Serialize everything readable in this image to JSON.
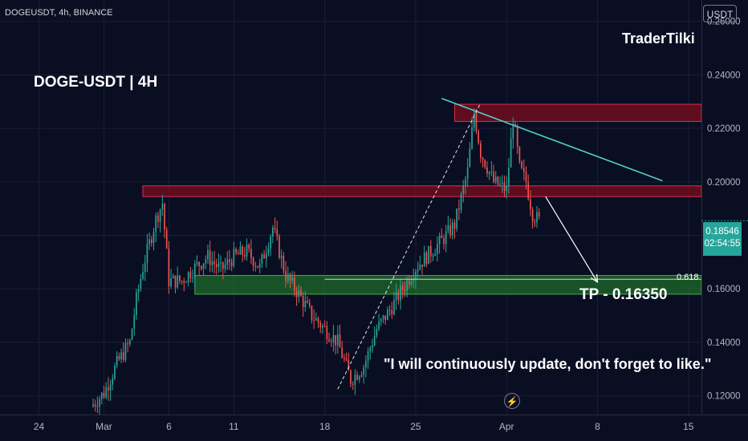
{
  "header": {
    "symbol_line": "DOGEUSDT, 4h, BINANCE",
    "currency": "USDT"
  },
  "annotations": {
    "author": "TraderTilki",
    "pair_label": "DOGE-USDT | 4H",
    "update_note": "\"I will continuously update, don't forget to like.\"",
    "target_label": "TP - 0.16350",
    "fib_level": "0.618"
  },
  "price_tag": {
    "price": "0.18546",
    "countdown": "02:54:55"
  },
  "colors": {
    "background": "#0a0e23",
    "up_candle": "#26a69a",
    "down_candle": "#ef5350",
    "resistance_zone": "#7a0d1e",
    "support_zone": "#1e6b2a",
    "trend_line": "#4dd0c8",
    "grid": "#1a1f35",
    "axis_text": "#b2b5be"
  },
  "chart_data": {
    "type": "candlestick",
    "title": "DOGE-USDT | 4H",
    "xlabel": "",
    "ylabel": "",
    "ylim": [
      0.113,
      0.268
    ],
    "y_ticks": [
      "0.26000",
      "0.24000",
      "0.22000",
      "0.20000",
      "0.18000",
      "0.16000",
      "0.14000",
      "0.12000"
    ],
    "y_tick_values": [
      0.26,
      0.24,
      0.22,
      0.2,
      0.18,
      0.16,
      0.14,
      0.12
    ],
    "x_start": "2023-02-21",
    "x_end": "2023-04-16",
    "x_ticks": [
      {
        "label": "24",
        "date": "2023-02-24"
      },
      {
        "label": "Mar",
        "date": "2023-03-01"
      },
      {
        "label": "6",
        "date": "2023-03-06"
      },
      {
        "label": "11",
        "date": "2023-03-11"
      },
      {
        "label": "18",
        "date": "2023-03-18"
      },
      {
        "label": "25",
        "date": "2023-03-25"
      },
      {
        "label": "Apr",
        "date": "2023-04-01"
      },
      {
        "label": "8",
        "date": "2023-04-08"
      },
      {
        "label": "15",
        "date": "2023-04-15"
      }
    ],
    "price_path": [
      {
        "date": "2023-02-28",
        "price": 0.116
      },
      {
        "date": "2023-03-01",
        "price": 0.121
      },
      {
        "date": "2023-03-02",
        "price": 0.132
      },
      {
        "date": "2023-03-03",
        "price": 0.14
      },
      {
        "date": "2023-03-03 12:00",
        "price": 0.156
      },
      {
        "date": "2023-03-04",
        "price": 0.168
      },
      {
        "date": "2023-03-05",
        "price": 0.186
      },
      {
        "date": "2023-03-05 12:00",
        "price": 0.192
      },
      {
        "date": "2023-03-06",
        "price": 0.163
      },
      {
        "date": "2023-03-07",
        "price": 0.163
      },
      {
        "date": "2023-03-08",
        "price": 0.168
      },
      {
        "date": "2023-03-09",
        "price": 0.172
      },
      {
        "date": "2023-03-10",
        "price": 0.167
      },
      {
        "date": "2023-03-11",
        "price": 0.172
      },
      {
        "date": "2023-03-12",
        "price": 0.174
      },
      {
        "date": "2023-03-13",
        "price": 0.168
      },
      {
        "date": "2023-03-14",
        "price": 0.183
      },
      {
        "date": "2023-03-15",
        "price": 0.165
      },
      {
        "date": "2023-03-16",
        "price": 0.158
      },
      {
        "date": "2023-03-17",
        "price": 0.15
      },
      {
        "date": "2023-03-18",
        "price": 0.145
      },
      {
        "date": "2023-03-19",
        "price": 0.14
      },
      {
        "date": "2023-03-20",
        "price": 0.126
      },
      {
        "date": "2023-03-21",
        "price": 0.131
      },
      {
        "date": "2023-03-22",
        "price": 0.145
      },
      {
        "date": "2023-03-23",
        "price": 0.152
      },
      {
        "date": "2023-03-24",
        "price": 0.16
      },
      {
        "date": "2023-03-25",
        "price": 0.168
      },
      {
        "date": "2023-03-26",
        "price": 0.173
      },
      {
        "date": "2023-03-27",
        "price": 0.178
      },
      {
        "date": "2023-03-28",
        "price": 0.184
      },
      {
        "date": "2023-03-29",
        "price": 0.204
      },
      {
        "date": "2023-03-29 12:00",
        "price": 0.226
      },
      {
        "date": "2023-03-30",
        "price": 0.211
      },
      {
        "date": "2023-03-31",
        "price": 0.2
      },
      {
        "date": "2023-04-01",
        "price": 0.197
      },
      {
        "date": "2023-04-01 12:00",
        "price": 0.224
      },
      {
        "date": "2023-04-02",
        "price": 0.205
      },
      {
        "date": "2023-04-02 12:00",
        "price": 0.2
      },
      {
        "date": "2023-04-03",
        "price": 0.188
      },
      {
        "date": "2023-04-03 12:00",
        "price": 0.1855
      }
    ],
    "zones": [
      {
        "type": "resistance",
        "from": "2023-03-28",
        "to": "2023-04-16",
        "low": 0.2226,
        "high": 0.229
      },
      {
        "type": "resistance",
        "from": "2023-03-04",
        "to": "2023-04-16",
        "low": 0.1945,
        "high": 0.1985
      },
      {
        "type": "support",
        "from": "2023-03-08",
        "to": "2023-04-16",
        "low": 0.158,
        "high": 0.165
      }
    ],
    "trend_lines": [
      {
        "style": "solid",
        "from": {
          "date": "2023-03-27",
          "price": 0.2312
        },
        "to": {
          "date": "2023-04-13",
          "price": 0.2004
        }
      },
      {
        "style": "dashed",
        "from": {
          "date": "2023-03-19",
          "price": 0.1225
        },
        "to": {
          "date": "2023-03-30",
          "price": 0.2295
        }
      }
    ],
    "fib_line": {
      "level": "0.618",
      "price": 0.1636,
      "from": "2023-03-18",
      "to": "2023-04-16"
    },
    "projection_arrow": {
      "from": {
        "date": "2023-04-04",
        "price": 0.1945
      },
      "to": {
        "date": "2023-04-08",
        "price": 0.1625
      }
    },
    "last_price": 0.18546
  }
}
